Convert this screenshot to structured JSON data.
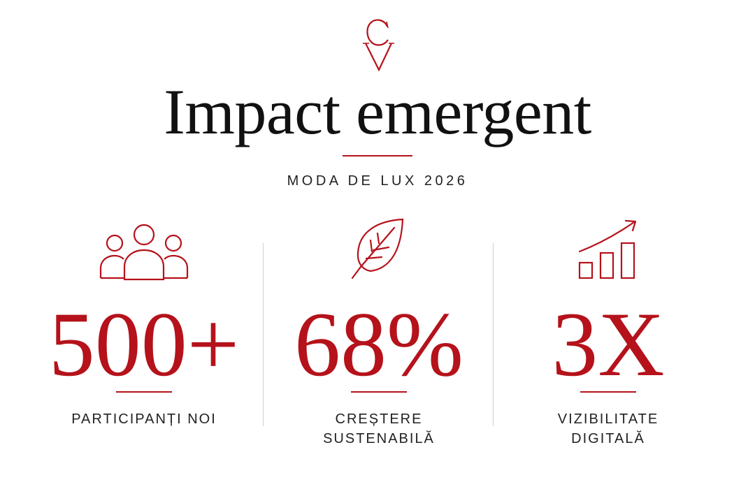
{
  "brand": {
    "monogram": "CV",
    "accent_color": "#b5121b"
  },
  "header": {
    "title": "Impact emergent",
    "subtitle": "MODA DE LUX 2026"
  },
  "stats": [
    {
      "icon": "people-group-icon",
      "value": "500+",
      "label_lines": [
        "PARTICIPANȚI NOI"
      ]
    },
    {
      "icon": "leaf-icon",
      "value": "68%",
      "label_lines": [
        "CREȘTERE",
        "SUSTENABILĂ"
      ]
    },
    {
      "icon": "growth-chart-icon",
      "value": "3X",
      "label_lines": [
        "VIZIBILITATE",
        "DIGITALĂ"
      ]
    }
  ]
}
